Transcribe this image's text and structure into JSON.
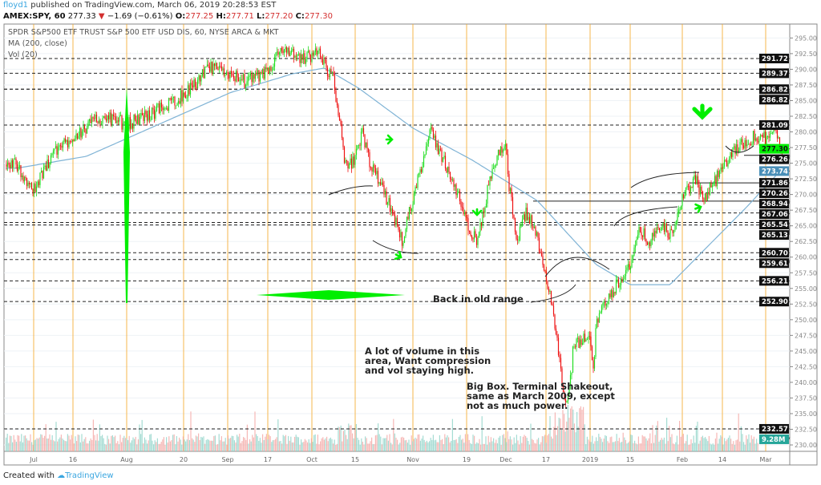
{
  "header": {
    "user": "floyd1",
    "published": "published on TradingView.com, March 06, 2019 20:28:53 EST",
    "symbol": "AMEX:SPY, 60",
    "last": "277.33",
    "change": "−1.69 (−0.61%)",
    "o_label": "O:",
    "o": "277.25",
    "h_label": "H:",
    "h": "277.71",
    "l_label": "L:",
    "l": "277.20",
    "c_label": "C:",
    "c": "277.30"
  },
  "legend": {
    "title": "SPDR S&P500 ETF TRUST S&P 500 ETF USD DIS, 60, NYSE ARCA & MKT",
    "ma": "MA (200, close)",
    "vol": "Vol (20)"
  },
  "footer": {
    "created": "Created with",
    "brand": "TradingView"
  },
  "annotations": {
    "range": "Back in old range",
    "volume": [
      "A lot of volume in this",
      "area, Want compression",
      "and vol staying high."
    ],
    "bigbox": [
      "Big Box. Terminal Shakeout,",
      "same as March 2009, except",
      "not as much power."
    ]
  },
  "colors": {
    "up": "#22dd22",
    "down": "#ee1111",
    "ma": "#7fb3d5",
    "marker": "#00ee00",
    "session_line": "#f5a623",
    "vol_up": "#8fd3c8",
    "vol_down": "#f4a6a4"
  },
  "chart_data": {
    "type": "candlestick",
    "title": "SPDR S&P500 ETF TRUST S&P 500 ETF USD DIS, 60, NYSE ARCA & MKT",
    "ylim": [
      229,
      297
    ],
    "y_ticks": [
      "295.00",
      "292.50",
      "290.00",
      "287.50",
      "285.00",
      "282.50",
      "280.00",
      "277.50",
      "275.00",
      "272.50",
      "270.00",
      "267.50",
      "265.00",
      "262.50",
      "260.00",
      "257.50",
      "255.00",
      "252.50",
      "250.00",
      "247.50",
      "245.00",
      "242.50",
      "240.00",
      "237.50",
      "235.00",
      "232.50",
      "230.00"
    ],
    "x_ticks": [
      "Jul",
      "16",
      "Aug",
      "20",
      "Sep",
      "17",
      "Oct",
      "15",
      "Nov",
      "19",
      "Dec",
      "17",
      "2019",
      "15",
      "Feb",
      "14",
      "Mar"
    ],
    "price_path": [
      [
        "2018-06-26",
        274.8
      ],
      [
        "2018-07-02",
        270.5
      ],
      [
        "2018-07-09",
        276.7
      ],
      [
        "2018-07-16",
        279.3
      ],
      [
        "2018-07-25",
        282.5
      ],
      [
        "2018-08-01",
        281.2
      ],
      [
        "2018-08-10",
        283.1
      ],
      [
        "2018-08-20",
        285.9
      ],
      [
        "2018-08-29",
        290.2
      ],
      [
        "2018-09-04",
        289.5
      ],
      [
        "2018-09-10",
        288.0
      ],
      [
        "2018-09-17",
        289.5
      ],
      [
        "2018-09-21",
        293.1
      ],
      [
        "2018-09-28",
        291.5
      ],
      [
        "2018-10-03",
        292.7
      ],
      [
        "2018-10-08",
        288.3
      ],
      [
        "2018-10-10",
        281.9
      ],
      [
        "2018-10-12",
        274.2
      ],
      [
        "2018-10-15",
        275.5
      ],
      [
        "2018-10-17",
        279.9
      ],
      [
        "2018-10-19",
        275.5
      ],
      [
        "2018-10-24",
        269.7
      ],
      [
        "2018-10-29",
        262.6
      ],
      [
        "2018-11-02",
        271.6
      ],
      [
        "2018-11-07",
        279.9
      ],
      [
        "2018-11-12",
        274.8
      ],
      [
        "2018-11-15",
        271.6
      ],
      [
        "2018-11-20",
        264.0
      ],
      [
        "2018-11-23",
        262.6
      ],
      [
        "2018-11-28",
        274.2
      ],
      [
        "2018-12-03",
        278.7
      ],
      [
        "2018-12-04",
        271.6
      ],
      [
        "2018-12-07",
        262.6
      ],
      [
        "2018-12-10",
        267.1
      ],
      [
        "2018-12-13",
        264.6
      ],
      [
        "2018-12-17",
        257.5
      ],
      [
        "2018-12-20",
        249.8
      ],
      [
        "2018-12-24",
        236.0
      ],
      [
        "2018-12-26",
        240.5
      ],
      [
        "2018-12-27",
        246.0
      ],
      [
        "2019-01-02",
        247.3
      ],
      [
        "2019-01-03",
        241.5
      ],
      [
        "2019-01-04",
        249.8
      ],
      [
        "2019-01-08",
        253.7
      ],
      [
        "2019-01-15",
        258.8
      ],
      [
        "2019-01-18",
        264.0
      ],
      [
        "2019-01-22",
        262.6
      ],
      [
        "2019-01-25",
        265.2
      ],
      [
        "2019-01-28",
        263.3
      ],
      [
        "2019-02-01",
        269.1
      ],
      [
        "2019-02-05",
        272.9
      ],
      [
        "2019-02-08",
        269.1
      ],
      [
        "2019-02-11",
        271.6
      ],
      [
        "2019-02-14",
        274.2
      ],
      [
        "2019-02-20",
        278.0
      ],
      [
        "2019-02-25",
        279.3
      ],
      [
        "2019-03-01",
        279.0
      ],
      [
        "2019-03-04",
        281.2
      ],
      [
        "2019-03-06",
        277.3
      ]
    ],
    "ma200": [
      [
        "2018-06-26",
        274.2
      ],
      [
        "2018-07-20",
        276.1
      ],
      [
        "2018-08-15",
        281.9
      ],
      [
        "2018-09-05",
        286.3
      ],
      [
        "2018-09-25",
        289.3
      ],
      [
        "2018-10-05",
        290.2
      ],
      [
        "2018-10-16",
        287.0
      ],
      [
        "2018-11-01",
        280.6
      ],
      [
        "2018-11-21",
        275.5
      ],
      [
        "2018-12-14",
        269.0
      ],
      [
        "2019-01-04",
        258.8
      ],
      [
        "2019-01-15",
        255.6
      ],
      [
        "2019-01-28",
        255.6
      ],
      [
        "2019-02-06",
        260.1
      ],
      [
        "2019-02-22",
        267.8
      ],
      [
        "2019-03-06",
        273.74
      ]
    ],
    "levels": [
      {
        "value": 291.72,
        "label": "291.72",
        "style": "dashed"
      },
      {
        "value": 289.37,
        "label": "289.37",
        "style": "dashed"
      },
      {
        "value": 286.82,
        "label": "286.82",
        "style": "dashed"
      },
      {
        "value": 286.82,
        "label": "286.82",
        "style": "dashed"
      },
      {
        "value": 281.09,
        "label": "281.09",
        "style": "dashed"
      },
      {
        "value": 276.26,
        "label": "276.26",
        "style": "solid"
      },
      {
        "value": 271.86,
        "label": "271.86",
        "style": "solid"
      },
      {
        "value": 270.26,
        "label": "270.26",
        "style": "dashed"
      },
      {
        "value": 268.94,
        "label": "268.94",
        "style": "solid"
      },
      {
        "value": 267.06,
        "label": "267.06",
        "style": "dashed"
      },
      {
        "value": 265.54,
        "label": "265.54",
        "style": "dashed"
      },
      {
        "value": 265.13,
        "label": "265.13",
        "style": "dashed"
      },
      {
        "value": 260.7,
        "label": "260.70",
        "style": "dashed"
      },
      {
        "value": 259.61,
        "label": "259.61",
        "style": "dashed"
      },
      {
        "value": 256.21,
        "label": "256.21",
        "style": "dashed"
      },
      {
        "value": 252.9,
        "label": "252.90",
        "style": "dashed"
      },
      {
        "value": 232.57,
        "label": "232.57",
        "style": "dashed"
      }
    ],
    "last_price": {
      "value": 277.3,
      "label": "277.30"
    },
    "ma_last": {
      "value": 273.74,
      "label": "273.74"
    },
    "volume_last": "9.28M"
  }
}
